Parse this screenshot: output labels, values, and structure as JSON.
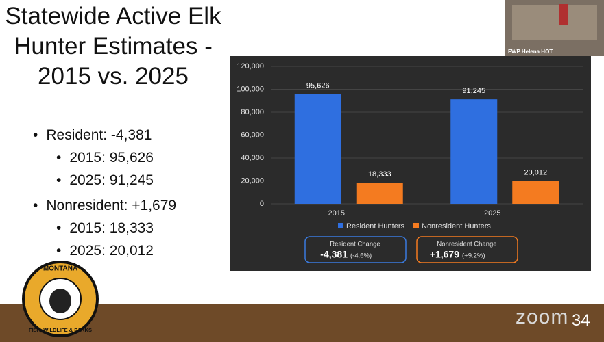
{
  "slide": {
    "title": "Statewide Active Elk Hunter Estimates  - 2015 vs. 2025",
    "bullets": [
      {
        "text": "Resident: -4,381",
        "sub": [
          "2015: 95,626",
          "2025: 91,245"
        ]
      },
      {
        "text": "Nonresident: +1,679",
        "sub": [
          "2015: 18,333",
          "2025: 20,012"
        ]
      }
    ],
    "logo": {
      "top": "MONTANA",
      "bottom": "FISH, WILDLIFE & PARKS"
    },
    "video_label": "FWP Helena HOT",
    "app": "zoom",
    "page_number": "34"
  },
  "chart_data": {
    "type": "bar",
    "categories": [
      "2015",
      "2025"
    ],
    "series": [
      {
        "name": "Resident Hunters",
        "color": "#2f6fe0",
        "values": [
          95626,
          91245
        ],
        "value_labels": [
          "95,626",
          "91,245"
        ]
      },
      {
        "name": "Nonresident Hunters",
        "color": "#f47b20",
        "values": [
          18333,
          20012
        ],
        "value_labels": [
          "18,333",
          "20,012"
        ]
      }
    ],
    "ylim": [
      0,
      120000
    ],
    "yticks": [
      0,
      {
        "value": 20000,
        "label": "20,000"
      },
      {
        "value": 40000,
        "label": "40,000"
      },
      {
        "value": 60000,
        "label": "60,000"
      },
      {
        "value": 80000,
        "label": "80,000"
      },
      {
        "value": 100000,
        "label": "100,000"
      },
      {
        "value": 120000,
        "label": "120,000"
      }
    ],
    "grid": true,
    "legend": "bottom",
    "change_boxes": [
      {
        "title": "Resident Change",
        "value": "-4,381",
        "pct": "(-4.6%)",
        "color": "#3a7be0"
      },
      {
        "title": "Nonresident Change",
        "value": "+1,679",
        "pct": "(+9.2%)",
        "color": "#f47b20"
      }
    ]
  }
}
